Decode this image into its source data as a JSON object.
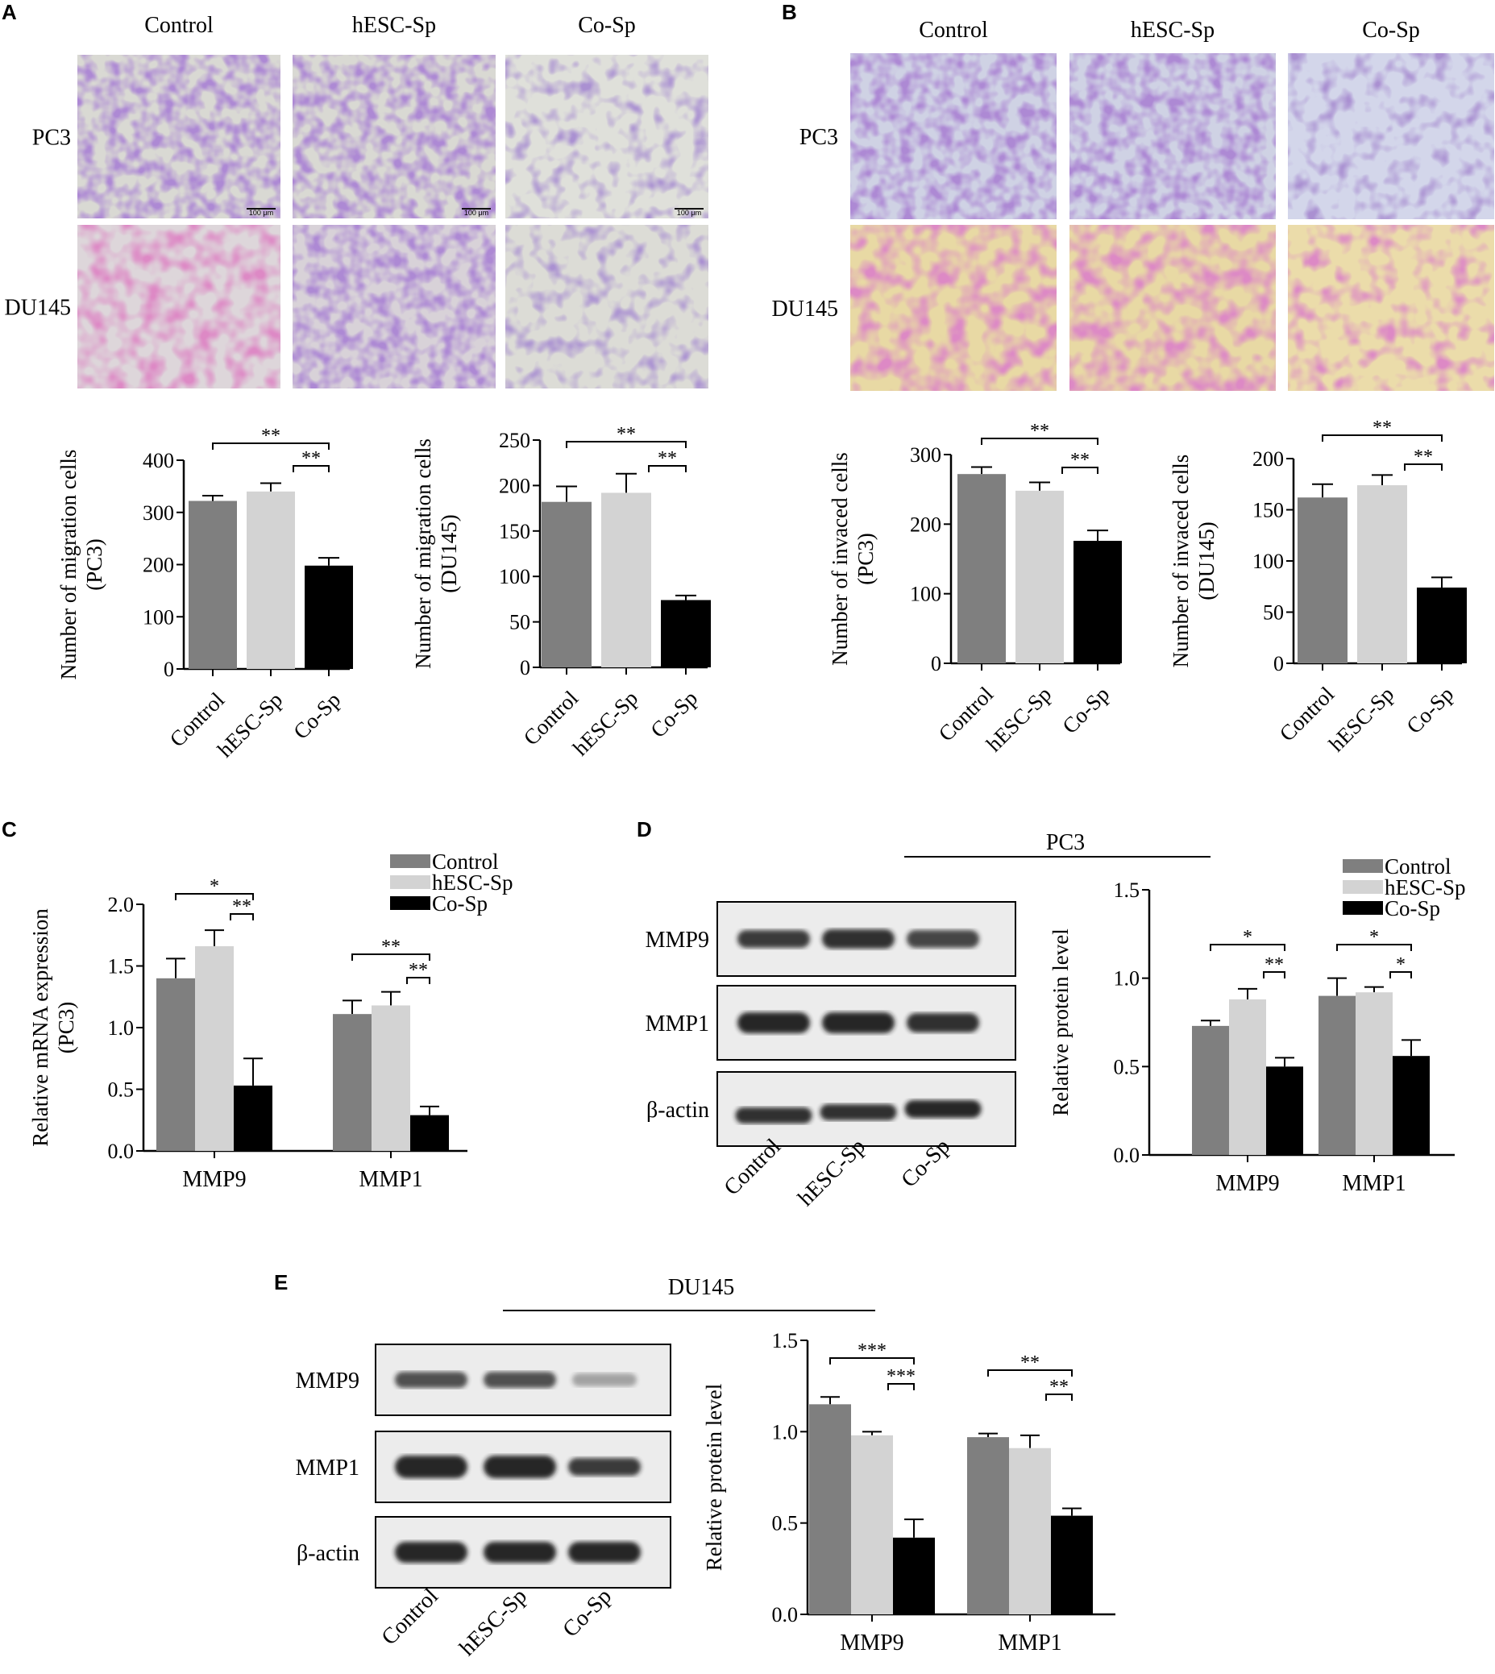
{
  "colors": {
    "control": "#7f7f7f",
    "hesc_sp": "#d3d3d3",
    "co_sp": "#000000",
    "stain_purple": "#6a3fa6",
    "stain_magenta": "#b83f8e",
    "background_gray": "#dcdcd6",
    "background_yellow": "#e6d7a6",
    "blot_band": "#1e1e1e",
    "blot_bg": "#ececec"
  },
  "panel_letters": {
    "a": "A",
    "b": "B",
    "c": "C",
    "d": "D",
    "e": "E"
  },
  "micrographs": {
    "A": {
      "columns": [
        "Control",
        "hESC-Sp",
        "Co-Sp"
      ],
      "rows": [
        "PC3",
        "DU145"
      ],
      "scale_bar": "100 μm"
    },
    "B": {
      "columns": [
        "Control",
        "hESC-Sp",
        "Co-Sp"
      ],
      "rows": [
        "PC3",
        "DU145"
      ]
    }
  },
  "blots": {
    "D": {
      "title": "PC3",
      "rows": [
        "MMP9",
        "MMP1",
        "β-actin"
      ],
      "lanes": [
        "Control",
        "hESC-Sp",
        "Co-Sp"
      ]
    },
    "E": {
      "title": "DU145",
      "rows": [
        "MMP9",
        "MMP1",
        "β-actin"
      ],
      "lanes": [
        "Control",
        "hESC-Sp",
        "Co-Sp"
      ]
    }
  },
  "chart_data": [
    {
      "id": "A-PC3",
      "type": "bar",
      "categories": [
        "Control",
        "hESC-Sp",
        "Co-Sp"
      ],
      "values": [
        322,
        340,
        198
      ],
      "errors": [
        10,
        16,
        15
      ],
      "ylabel": [
        "Number of migration cells",
        "(PC3)"
      ],
      "ylim": [
        0,
        400
      ],
      "yticks": [
        "0",
        "100",
        "200",
        "300",
        "400"
      ],
      "significance": [
        {
          "from": "Control",
          "to": "Co-Sp",
          "label": "**"
        },
        {
          "from": "hESC-Sp",
          "to": "Co-Sp",
          "label": "**"
        }
      ]
    },
    {
      "id": "A-DU145",
      "type": "bar",
      "categories": [
        "Control",
        "hESC-Sp",
        "Co-Sp"
      ],
      "values": [
        182,
        192,
        74
      ],
      "errors": [
        17,
        21,
        5
      ],
      "ylabel": [
        "Number of migration cells",
        "(DU145)"
      ],
      "ylim": [
        0,
        250
      ],
      "yticks": [
        "0",
        "50",
        "100",
        "150",
        "200",
        "250"
      ],
      "significance": [
        {
          "from": "Control",
          "to": "Co-Sp",
          "label": "**"
        },
        {
          "from": "hESC-Sp",
          "to": "Co-Sp",
          "label": "**"
        }
      ]
    },
    {
      "id": "B-PC3",
      "type": "bar",
      "categories": [
        "Control",
        "hESC-Sp",
        "Co-Sp"
      ],
      "values": [
        272,
        248,
        176
      ],
      "errors": [
        10,
        12,
        15
      ],
      "ylabel": [
        "Number of invaced cells",
        "(PC3)"
      ],
      "ylim": [
        0,
        300
      ],
      "yticks": [
        "0",
        "100",
        "200",
        "300"
      ],
      "significance": [
        {
          "from": "Control",
          "to": "Co-Sp",
          "label": "**"
        },
        {
          "from": "hESC-Sp",
          "to": "Co-Sp",
          "label": "**"
        }
      ]
    },
    {
      "id": "B-DU145",
      "type": "bar",
      "categories": [
        "Control",
        "hESC-Sp",
        "Co-Sp"
      ],
      "values": [
        162,
        174,
        74
      ],
      "errors": [
        13,
        10,
        10
      ],
      "ylabel": [
        "Number of invaced cells",
        "(DU145)"
      ],
      "ylim": [
        0,
        200
      ],
      "yticks": [
        "0",
        "50",
        "100",
        "150",
        "200"
      ],
      "significance": [
        {
          "from": "Control",
          "to": "Co-Sp",
          "label": "**"
        },
        {
          "from": "hESC-Sp",
          "to": "Co-Sp",
          "label": "**"
        }
      ]
    },
    {
      "id": "C",
      "type": "bar",
      "categories": [
        "MMP9",
        "MMP1"
      ],
      "series": [
        {
          "name": "Control",
          "values": [
            1.4,
            1.11
          ],
          "errors": [
            0.16,
            0.11
          ]
        },
        {
          "name": "hESC-Sp",
          "values": [
            1.66,
            1.18
          ],
          "errors": [
            0.13,
            0.11
          ]
        },
        {
          "name": "Co-Sp",
          "values": [
            0.53,
            0.29
          ],
          "errors": [
            0.22,
            0.07
          ]
        }
      ],
      "ylabel": [
        "Relative mRNA expression",
        "(PC3)"
      ],
      "ylim": [
        0,
        2.0
      ],
      "yticks": [
        "0.0",
        "0.5",
        "1.0",
        "1.5",
        "2.0"
      ],
      "legend": "top-right",
      "significance": [
        {
          "group": "MMP9",
          "from": "Control",
          "to": "Co-Sp",
          "label": "*"
        },
        {
          "group": "MMP9",
          "from": "hESC-Sp",
          "to": "Co-Sp",
          "label": "**"
        },
        {
          "group": "MMP1",
          "from": "Control",
          "to": "Co-Sp",
          "label": "**"
        },
        {
          "group": "MMP1",
          "from": "hESC-Sp",
          "to": "Co-Sp",
          "label": "**"
        }
      ]
    },
    {
      "id": "D",
      "type": "bar",
      "categories": [
        "MMP9",
        "MMP1"
      ],
      "series": [
        {
          "name": "Control",
          "values": [
            0.73,
            0.9
          ],
          "errors": [
            0.03,
            0.1
          ]
        },
        {
          "name": "hESC-Sp",
          "values": [
            0.88,
            0.92
          ],
          "errors": [
            0.06,
            0.03
          ]
        },
        {
          "name": "Co-Sp",
          "values": [
            0.5,
            0.56
          ],
          "errors": [
            0.05,
            0.09
          ]
        }
      ],
      "ylabel": [
        "Relative protein level"
      ],
      "ylim": [
        0,
        1.5
      ],
      "yticks": [
        "0.0",
        "0.5",
        "1.0",
        "1.5"
      ],
      "legend": "top-right",
      "significance": [
        {
          "group": "MMP9",
          "from": "Control",
          "to": "Co-Sp",
          "label": "*"
        },
        {
          "group": "MMP9",
          "from": "hESC-Sp",
          "to": "Co-Sp",
          "label": "**"
        },
        {
          "group": "MMP1",
          "from": "Control",
          "to": "Co-Sp",
          "label": "*"
        },
        {
          "group": "MMP1",
          "from": "hESC-Sp",
          "to": "Co-Sp",
          "label": "*"
        }
      ]
    },
    {
      "id": "E",
      "type": "bar",
      "categories": [
        "MMP9",
        "MMP1"
      ],
      "series": [
        {
          "name": "Control",
          "values": [
            1.15,
            0.97
          ],
          "errors": [
            0.04,
            0.02
          ]
        },
        {
          "name": "hESC-Sp",
          "values": [
            0.98,
            0.91
          ],
          "errors": [
            0.02,
            0.07
          ]
        },
        {
          "name": "Co-Sp",
          "values": [
            0.42,
            0.54
          ],
          "errors": [
            0.1,
            0.04
          ]
        }
      ],
      "ylabel": [
        "Relative protein level"
      ],
      "ylim": [
        0,
        1.5
      ],
      "yticks": [
        "0.0",
        "0.5",
        "1.0",
        "1.5"
      ],
      "significance": [
        {
          "group": "MMP9",
          "from": "Control",
          "to": "Co-Sp",
          "label": "***"
        },
        {
          "group": "MMP9",
          "from": "hESC-Sp",
          "to": "Co-Sp",
          "label": "***"
        },
        {
          "group": "MMP1",
          "from": "Control",
          "to": "Co-Sp",
          "label": "**"
        },
        {
          "group": "MMP1",
          "from": "hESC-Sp",
          "to": "Co-Sp",
          "label": "**"
        }
      ]
    }
  ]
}
